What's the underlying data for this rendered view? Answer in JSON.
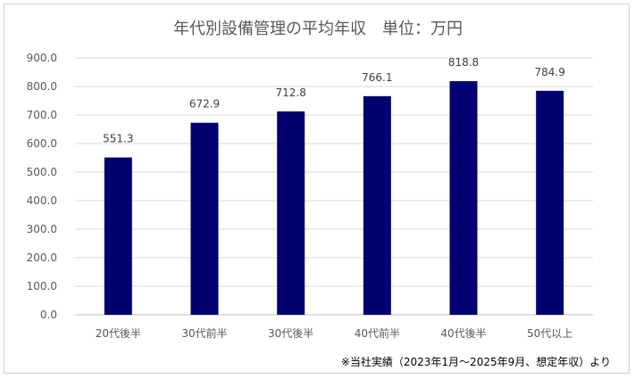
{
  "chart_data": {
    "type": "bar",
    "title": "年代別設備管理の平均年収　単位：万円",
    "categories": [
      "20代後半",
      "30代前半",
      "30代後半",
      "40代前半",
      "40代後半",
      "50代以上"
    ],
    "values": [
      551.3,
      672.9,
      712.8,
      766.1,
      818.8,
      784.9
    ],
    "data_labels": [
      "551.3",
      "672.9",
      "712.8",
      "766.1",
      "818.8",
      "784.9"
    ],
    "ylim": [
      0,
      900
    ],
    "yticks": [
      "0.0",
      "100.0",
      "200.0",
      "300.0",
      "400.0",
      "500.0",
      "600.0",
      "700.0",
      "800.0",
      "900.0"
    ],
    "grid": true,
    "bar_color": "#000070",
    "footnote": "※当社実績（2023年1月～2025年9月、想定年収）より"
  }
}
